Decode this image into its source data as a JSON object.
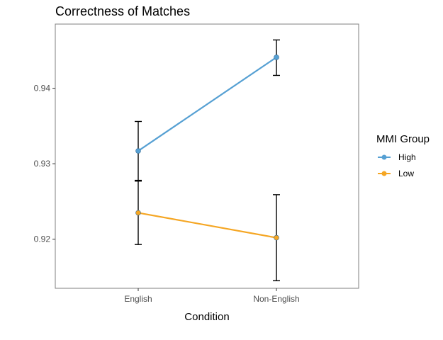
{
  "chart_data": {
    "type": "line",
    "title": "Correctness of Matches",
    "xlabel": "Condition",
    "ylabel": "",
    "categories": [
      "English",
      "Non-English"
    ],
    "ylim": [
      0.9135,
      0.9485
    ],
    "yticks": [
      0.92,
      0.93,
      0.94
    ],
    "ytick_labels": [
      "0.92",
      "0.93",
      "0.94"
    ],
    "grid": false,
    "legend": {
      "title": "MMI Group",
      "placement": "right"
    },
    "series": [
      {
        "name": "High",
        "color": "#56a0d3",
        "values": [
          0.9317,
          0.9441
        ],
        "error_low": [
          0.9278,
          0.9417
        ],
        "error_high": [
          0.9356,
          0.9464
        ]
      },
      {
        "name": "Low",
        "color": "#f5a623",
        "values": [
          0.9235,
          0.9202
        ],
        "error_low": [
          0.9193,
          0.9145
        ],
        "error_high": [
          0.9277,
          0.9259
        ]
      }
    ]
  }
}
